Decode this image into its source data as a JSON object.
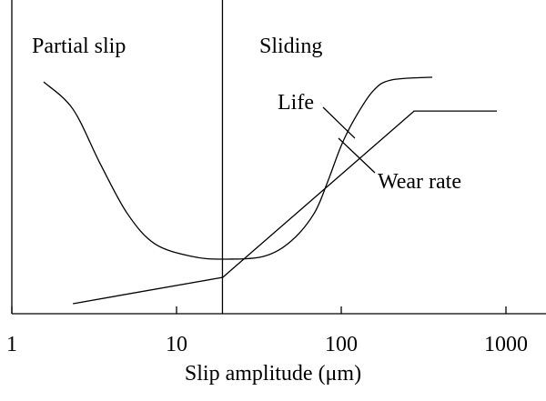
{
  "chart_data": {
    "type": "line",
    "xlabel": "Slip amplitude (μm)",
    "annotations": [
      "Partial slip",
      "Sliding",
      "Life",
      "Wear rate"
    ],
    "regime_boundary": 19,
    "xscale": "log",
    "xlim": [
      1,
      1750
    ],
    "ylim": [
      0,
      1
    ],
    "xticks": [
      1,
      10,
      100,
      1000
    ],
    "series": [
      {
        "name": "Life",
        "color": "#000000",
        "x": [
          1.56,
          2.35,
          3.44,
          5.03,
          7.37,
          12.3,
          19.1,
          33.9,
          49.7,
          68.3,
          82.6,
          100,
          121,
          156,
          201,
          357
        ],
        "values": [
          0.739,
          0.652,
          0.478,
          0.319,
          0.223,
          0.183,
          0.174,
          0.183,
          0.232,
          0.319,
          0.42,
          0.536,
          0.623,
          0.71,
          0.745,
          0.754
        ]
      },
      {
        "name": "Wear rate",
        "color": "#000000",
        "x": [
          2.35,
          19.1,
          277,
          881
        ],
        "values": [
          0.032,
          0.116,
          0.646,
          0.646
        ]
      }
    ]
  }
}
